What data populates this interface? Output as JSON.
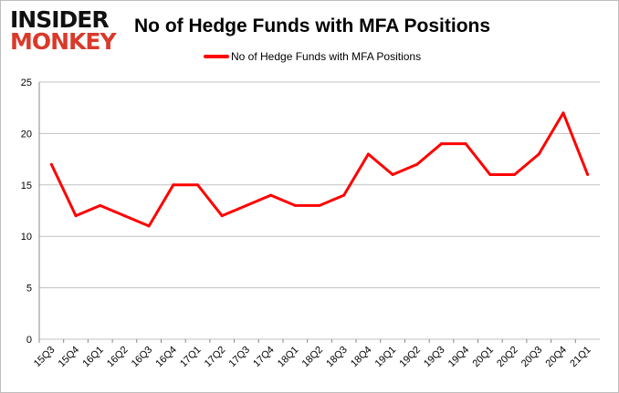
{
  "logo": {
    "line1": "INSIDER",
    "line2": "MONKEY"
  },
  "chart_data": {
    "type": "line",
    "title": "No of Hedge Funds with MFA Positions",
    "categories": [
      "15Q3",
      "15Q4",
      "16Q1",
      "16Q2",
      "16Q3",
      "16Q4",
      "17Q1",
      "17Q2",
      "17Q3",
      "17Q4",
      "18Q1",
      "18Q2",
      "18Q3",
      "18Q4",
      "19Q1",
      "19Q2",
      "19Q3",
      "19Q4",
      "20Q1",
      "20Q2",
      "20Q3",
      "20Q4",
      "21Q1"
    ],
    "series": [
      {
        "name": "No of Hedge Funds with MFA Positions",
        "color": "#ff0000",
        "values": [
          17,
          12,
          13,
          12,
          11,
          15,
          15,
          12,
          13,
          14,
          13,
          13,
          14,
          18,
          16,
          17,
          19,
          19,
          16,
          16,
          18,
          22,
          16
        ]
      }
    ],
    "yticks": [
      0,
      5,
      10,
      15,
      20,
      25
    ],
    "ylim": [
      0,
      25
    ],
    "grid": true,
    "legend": "top"
  }
}
